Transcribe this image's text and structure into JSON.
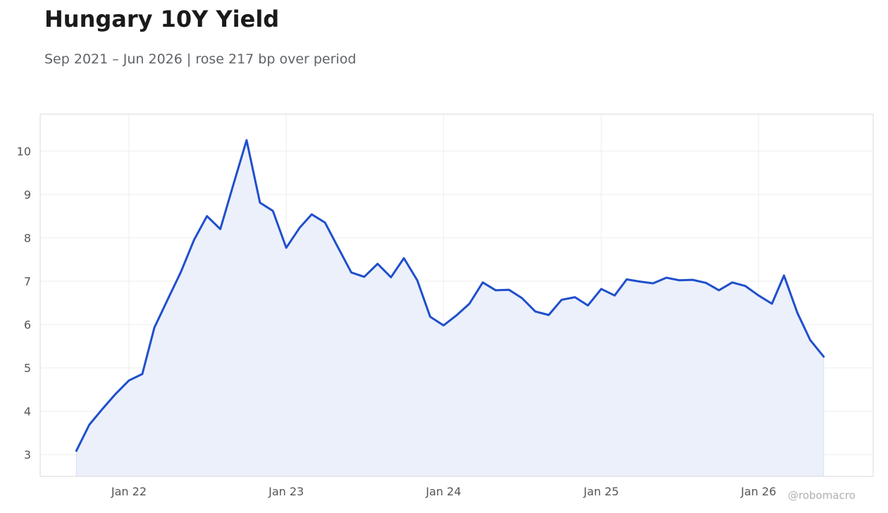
{
  "header": {
    "title": "Hungary 10Y Yield",
    "subtitle": "Sep 2021 – Jun 2026 | rose 217 bp over period"
  },
  "watermark": "@robomacro",
  "colors": {
    "line": "#1f4fcc",
    "fill": "#ecf0fb",
    "grid": "#ededed",
    "frame": "#d9d9d9",
    "tick_text": "#555555"
  },
  "chart_data": {
    "type": "area",
    "title": "Hungary 10Y Yield",
    "subtitle": "Sep 2021 – Jun 2026 | rose 217 bp over period",
    "xlabel": "",
    "ylabel": "",
    "x_ticks": [
      {
        "date": "2022-01-01",
        "label": "Jan 22"
      },
      {
        "date": "2023-01-01",
        "label": "Jan 23"
      },
      {
        "date": "2024-01-01",
        "label": "Jan 24"
      },
      {
        "date": "2025-01-01",
        "label": "Jan 25"
      },
      {
        "date": "2026-01-01",
        "label": "Jan 26"
      }
    ],
    "y_ticks": [
      3,
      4,
      5,
      6,
      7,
      8,
      9,
      10
    ],
    "xlim": [
      "2021-06-09",
      "2026-09-24"
    ],
    "ylim": [
      2.5,
      10.85
    ],
    "grid": true,
    "legend": "none",
    "series": [
      {
        "x": [
          "2021-09-01",
          "2021-10-01",
          "2021-11-01",
          "2021-12-01",
          "2022-01-01",
          "2022-02-01",
          "2022-03-01",
          "2022-04-01",
          "2022-05-01",
          "2022-06-01",
          "2022-07-01",
          "2022-08-01",
          "2022-09-01",
          "2022-10-01",
          "2022-11-01",
          "2022-12-01",
          "2023-01-01",
          "2023-02-01",
          "2023-03-01",
          "2023-04-01",
          "2023-05-01",
          "2023-06-01",
          "2023-07-01",
          "2023-08-01",
          "2023-09-01",
          "2023-10-01",
          "2023-11-01",
          "2023-12-01",
          "2024-01-01",
          "2024-02-01",
          "2024-03-01",
          "2024-04-01",
          "2024-05-01",
          "2024-06-01",
          "2024-07-01",
          "2024-08-01",
          "2024-09-01",
          "2024-10-01",
          "2024-11-01",
          "2024-12-01",
          "2025-01-01",
          "2025-02-01",
          "2025-03-01",
          "2025-04-01",
          "2025-05-01",
          "2025-06-01",
          "2025-07-01",
          "2025-08-01",
          "2025-09-01",
          "2025-10-01",
          "2025-11-01",
          "2025-12-01",
          "2026-01-01",
          "2026-02-01",
          "2026-03-01",
          "2026-04-01",
          "2026-05-01",
          "2026-06-01"
        ],
        "values": [
          3.09,
          3.69,
          4.06,
          4.4,
          4.71,
          4.86,
          5.93,
          6.58,
          7.2,
          7.95,
          8.5,
          8.2,
          9.25,
          10.25,
          8.81,
          8.62,
          7.77,
          8.23,
          8.54,
          8.35,
          7.78,
          7.2,
          7.1,
          7.4,
          7.09,
          7.53,
          7.02,
          6.18,
          5.98,
          6.22,
          6.48,
          6.97,
          6.79,
          6.8,
          6.61,
          6.3,
          6.22,
          6.57,
          6.63,
          6.44,
          6.82,
          6.67,
          7.04,
          6.99,
          6.95,
          7.08,
          7.02,
          7.03,
          6.96,
          6.79,
          6.97,
          6.89,
          6.67,
          6.48,
          7.13,
          6.27,
          5.64,
          5.26
        ]
      }
    ]
  }
}
